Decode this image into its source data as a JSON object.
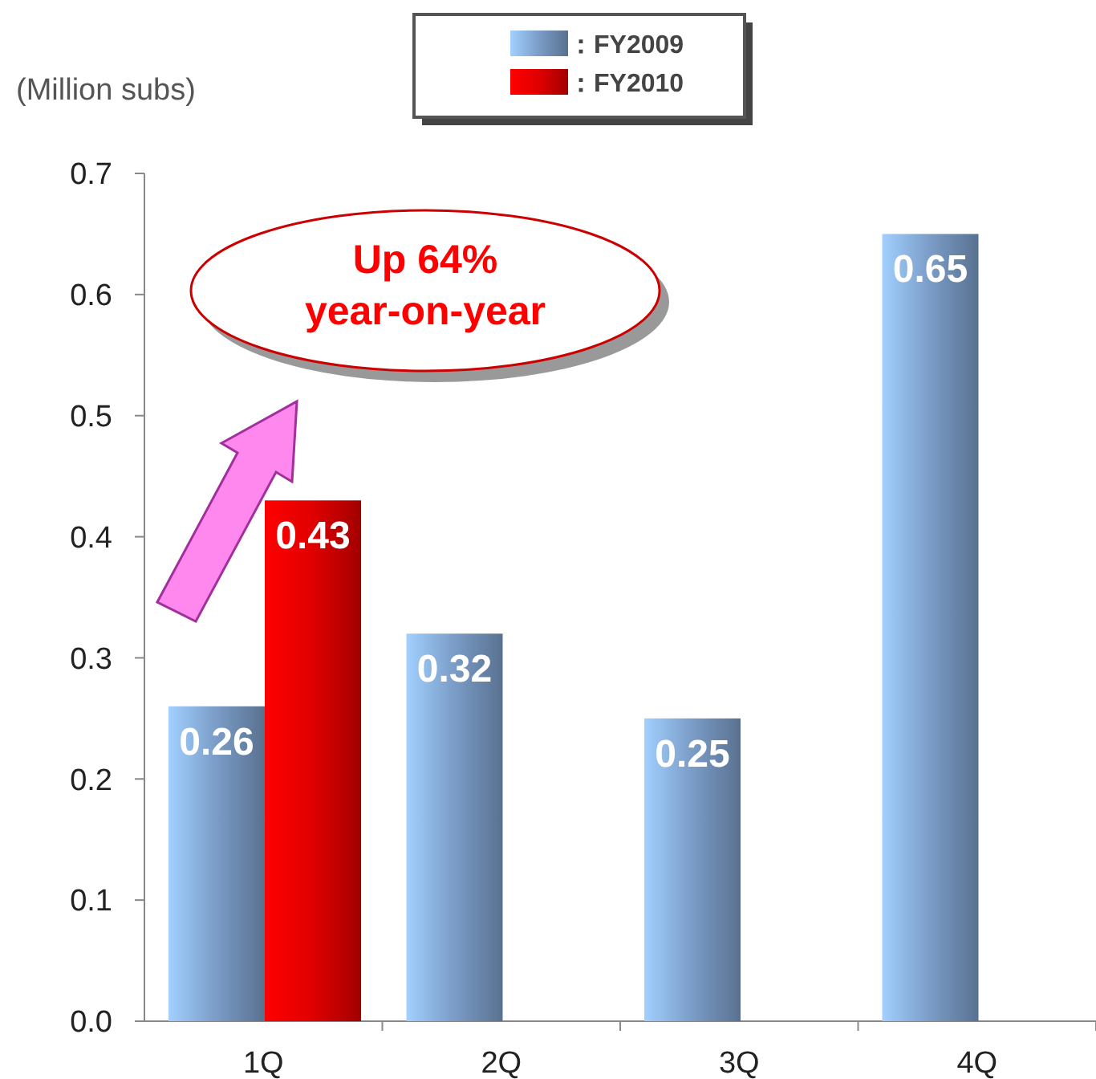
{
  "chart_data": {
    "type": "bar",
    "ylabel": "(Million subs)",
    "categories": [
      "1Q",
      "2Q",
      "3Q",
      "4Q"
    ],
    "series": [
      {
        "name": "：FY2009",
        "color": "#7a9cc6",
        "values": [
          0.26,
          0.32,
          0.25,
          0.65
        ]
      },
      {
        "name": "：FY2010",
        "color": "#e00000",
        "values": [
          0.43,
          null,
          null,
          null
        ]
      }
    ],
    "ylim": [
      0,
      0.7
    ],
    "yticks": [
      {
        "value": 0,
        "label": "0.0"
      },
      0.1,
      0.2,
      0.3,
      0.4,
      0.5,
      0.6,
      0.7
    ],
    "data_labels": true,
    "legend": "top",
    "grid": false,
    "annotations": [
      "Up 64%\nyear-on-year"
    ]
  }
}
